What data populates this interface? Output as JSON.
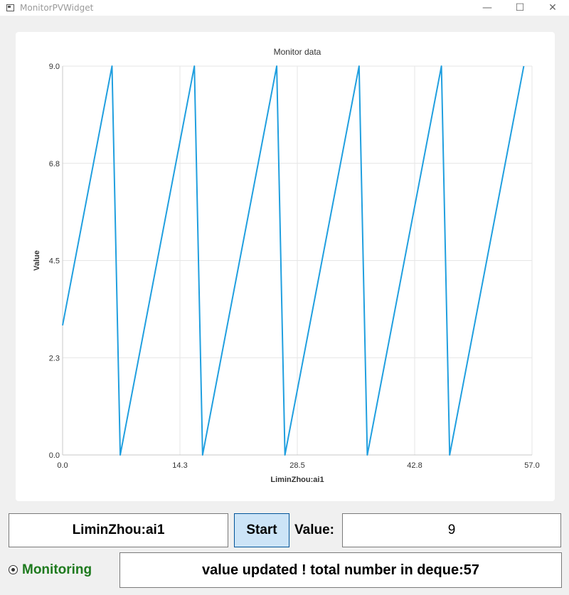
{
  "window": {
    "title": "MonitorPVWidget",
    "minimize_glyph": "—",
    "maximize_glyph": "☐",
    "close_glyph": "✕"
  },
  "chart_data": {
    "type": "line",
    "title": "Monitor data",
    "xlabel": "LiminZhou:ai1",
    "ylabel": "Value",
    "xlim": [
      0,
      57
    ],
    "ylim": [
      0,
      9
    ],
    "x_ticks": [
      "0.0",
      "14.3",
      "28.5",
      "42.8",
      "57.0"
    ],
    "y_ticks": [
      "0.0",
      "2.3",
      "4.5",
      "6.8",
      "9.0"
    ],
    "grid": true,
    "legend": "none",
    "color": "#209fdf",
    "series": [
      {
        "x": [
          0,
          6,
          7,
          16,
          17,
          26,
          27,
          36,
          37,
          46,
          47,
          56
        ],
        "y": [
          3,
          9,
          0,
          9,
          0,
          9,
          0,
          9,
          0,
          9,
          0,
          9
        ]
      }
    ]
  },
  "controls": {
    "pv_name": "LiminZhou:ai1",
    "start_label": "Start",
    "value_label": "Value:",
    "value": "9",
    "monitoring_label": "Monitoring",
    "monitoring_color": "#1e7a1e",
    "status_text": "value updated ! total number in deque:57"
  }
}
